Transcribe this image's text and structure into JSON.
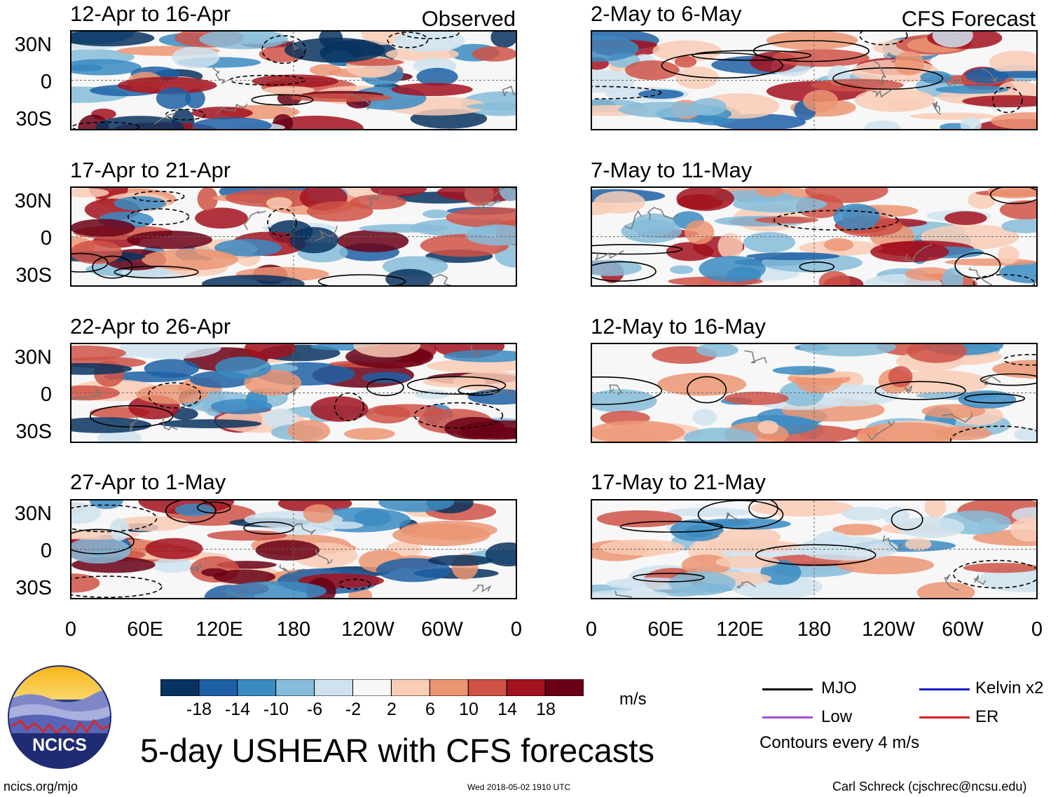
{
  "panel_titles": {
    "obs_label": "Observed",
    "fcst_label": "CFS Forecast"
  },
  "chart_data": {
    "type": "heatmap",
    "title": "5-day USHEAR with CFS forecasts",
    "variable": "USHEAR",
    "units": "m/s",
    "contour_interval_text": "Contours every 4 m/s",
    "lat_ticks": [
      "30N",
      "0",
      "30S"
    ],
    "lon_ticks": [
      "0",
      "60E",
      "120E",
      "180",
      "120W",
      "60W",
      "0"
    ],
    "colorbar": {
      "ticks": [
        "-18",
        "-14",
        "-10",
        "-6",
        "-2",
        "2",
        "6",
        "10",
        "14",
        "18"
      ],
      "colors": [
        "#08325f",
        "#1d60a6",
        "#3b8bc2",
        "#86bcd9",
        "#cfe3ef",
        "#f7f7f7",
        "#f9cdb6",
        "#ec9573",
        "#cf5246",
        "#a3121f",
        "#6a0015"
      ]
    },
    "panels": [
      {
        "period": "12-Apr to 16-Apr",
        "source": "Observed"
      },
      {
        "period": "17-Apr to 21-Apr",
        "source": "Observed"
      },
      {
        "period": "22-Apr to 26-Apr",
        "source": "Observed"
      },
      {
        "period": "27-Apr to 1-May",
        "source": "Observed"
      },
      {
        "period": "2-May to 6-May",
        "source": "CFS Forecast"
      },
      {
        "period": "7-May to 11-May",
        "source": "CFS Forecast"
      },
      {
        "period": "12-May to 16-May",
        "source": "CFS Forecast"
      },
      {
        "period": "17-May to 21-May",
        "source": "CFS Forecast"
      }
    ],
    "legend": [
      {
        "label": "MJO",
        "color": "#000000"
      },
      {
        "label": "Kelvin x2",
        "color": "#1a1acc"
      },
      {
        "label": "Low",
        "color": "#a64fd6"
      },
      {
        "label": "ER",
        "color": "#d62020"
      }
    ]
  },
  "logo": {
    "text": "NCICS"
  },
  "footer": {
    "left": "ncics.org/mjo",
    "center": "Wed 2018-05-02 1910 UTC",
    "right": "Carl Schreck (cjschrec@ncsu.edu)"
  }
}
